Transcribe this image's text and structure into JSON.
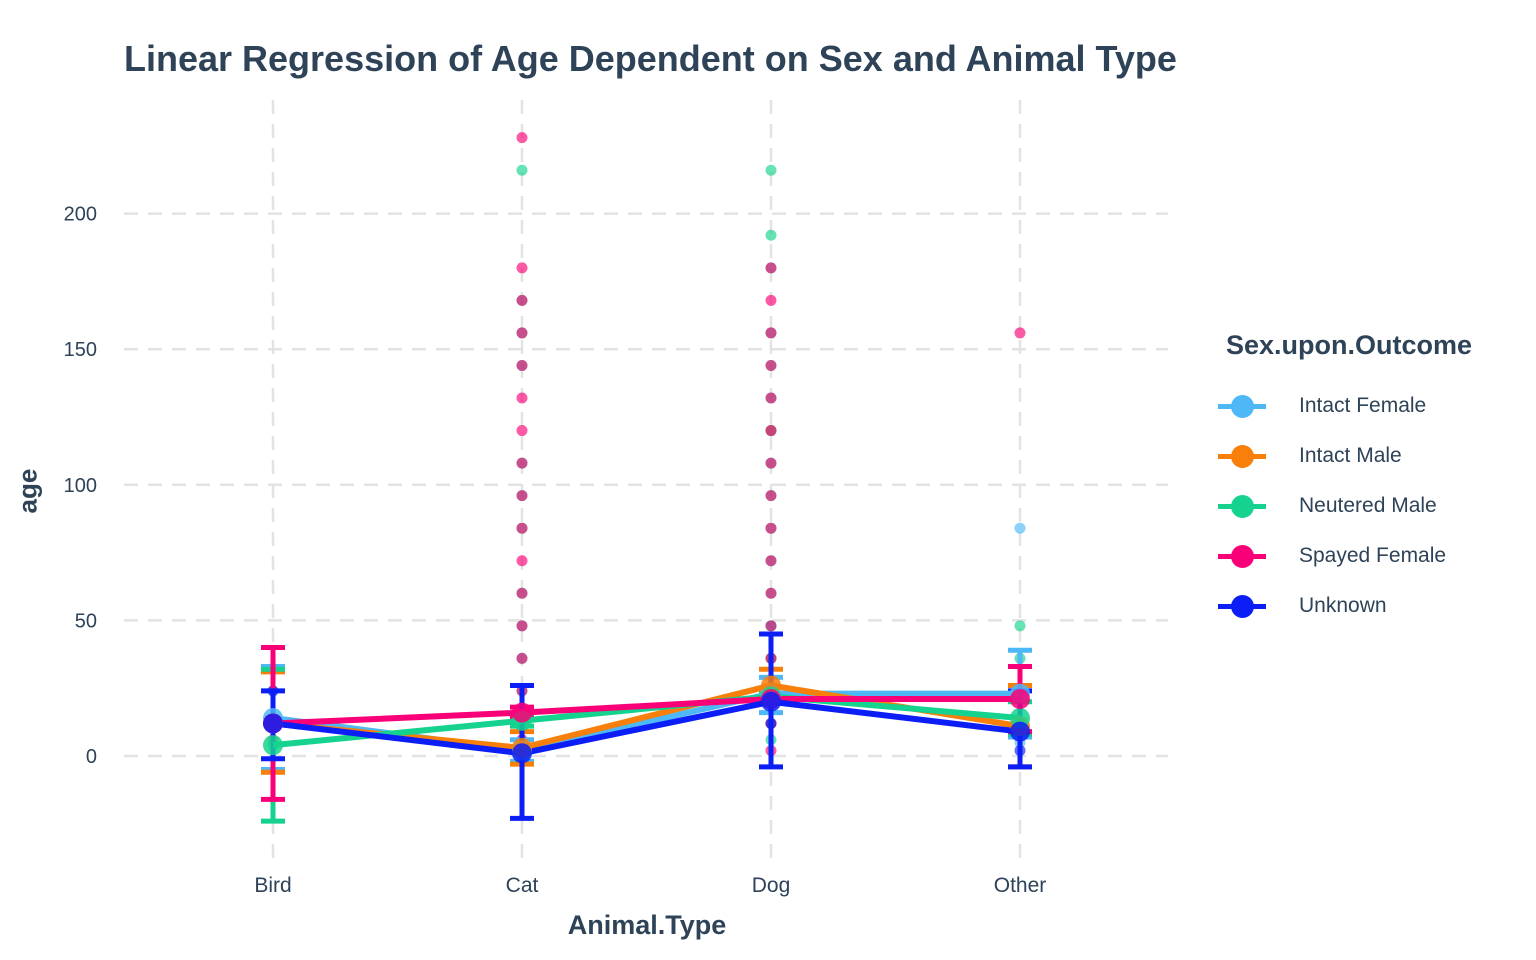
{
  "chart_data": {
    "type": "scatter",
    "title": "Linear Regression of Age Dependent on Sex and Animal Type",
    "xlabel": "Animal.Type",
    "ylabel": "age",
    "categories": [
      "Bird",
      "Cat",
      "Dog",
      "Other"
    ],
    "yticks": [
      0,
      50,
      100,
      150,
      200
    ],
    "ylim": [
      -40,
      240
    ],
    "grid": true,
    "legend": {
      "title": "Sex.upon.Outcome",
      "placement": "right"
    },
    "series": [
      {
        "name": "Intact Female",
        "color": "#4db8f5",
        "means": [
          14,
          2,
          23,
          23
        ],
        "lower": [
          -5,
          -2,
          16,
          7
        ],
        "upper": [
          33,
          6,
          29,
          39
        ],
        "points": [
          [
            0,
            12
          ],
          [
            0,
            24
          ],
          [
            1,
            2
          ],
          [
            1,
            6
          ],
          [
            1,
            12
          ],
          [
            2,
            24
          ],
          [
            2,
            36
          ],
          [
            2,
            48
          ],
          [
            3,
            84
          ],
          [
            3,
            5
          ],
          [
            3,
            12
          ],
          [
            3,
            24
          ]
        ]
      },
      {
        "name": "Intact Male",
        "color": "#f77f0a",
        "means": [
          12,
          3,
          26,
          11
        ],
        "lower": [
          -6,
          -3,
          20,
          -4
        ],
        "upper": [
          31,
          9,
          32,
          26
        ],
        "points": [
          [
            0,
            6
          ],
          [
            0,
            12
          ],
          [
            1,
            2
          ],
          [
            1,
            3
          ],
          [
            1,
            5
          ],
          [
            1,
            10
          ],
          [
            2,
            12
          ],
          [
            2,
            24
          ],
          [
            2,
            36
          ],
          [
            2,
            120
          ],
          [
            3,
            10
          ],
          [
            3,
            24
          ]
        ]
      },
      {
        "name": "Neutered Male",
        "color": "#15d38e",
        "means": [
          4,
          13,
          22,
          14
        ],
        "lower": [
          -24,
          11,
          21,
          8
        ],
        "upper": [
          32,
          15,
          23,
          20
        ],
        "points": [
          [
            0,
            4
          ],
          [
            1,
            12
          ],
          [
            1,
            24
          ],
          [
            1,
            36
          ],
          [
            1,
            48
          ],
          [
            1,
            60
          ],
          [
            1,
            84
          ],
          [
            1,
            96
          ],
          [
            1,
            108
          ],
          [
            1,
            144
          ],
          [
            1,
            156
          ],
          [
            1,
            168
          ],
          [
            1,
            216
          ],
          [
            2,
            6
          ],
          [
            2,
            12
          ],
          [
            2,
            24
          ],
          [
            2,
            36
          ],
          [
            2,
            48
          ],
          [
            2,
            60
          ],
          [
            2,
            72
          ],
          [
            2,
            84
          ],
          [
            2,
            96
          ],
          [
            2,
            108
          ],
          [
            2,
            120
          ],
          [
            2,
            132
          ],
          [
            2,
            144
          ],
          [
            2,
            156
          ],
          [
            2,
            180
          ],
          [
            2,
            192
          ],
          [
            2,
            216
          ],
          [
            3,
            36
          ],
          [
            3,
            48
          ]
        ]
      },
      {
        "name": "Spayed Female",
        "color": "#fa0078",
        "means": [
          12,
          16,
          21,
          21
        ],
        "lower": [
          -16,
          14,
          20,
          9
        ],
        "upper": [
          40,
          18,
          22,
          33
        ],
        "points": [
          [
            0,
            12
          ],
          [
            1,
            2
          ],
          [
            1,
            6
          ],
          [
            1,
            12
          ],
          [
            1,
            24
          ],
          [
            1,
            36
          ],
          [
            1,
            48
          ],
          [
            1,
            60
          ],
          [
            1,
            72
          ],
          [
            1,
            84
          ],
          [
            1,
            96
          ],
          [
            1,
            108
          ],
          [
            1,
            120
          ],
          [
            1,
            132
          ],
          [
            1,
            144
          ],
          [
            1,
            156
          ],
          [
            1,
            168
          ],
          [
            1,
            180
          ],
          [
            1,
            228
          ],
          [
            2,
            2
          ],
          [
            2,
            12
          ],
          [
            2,
            24
          ],
          [
            2,
            36
          ],
          [
            2,
            48
          ],
          [
            2,
            60
          ],
          [
            2,
            72
          ],
          [
            2,
            84
          ],
          [
            2,
            96
          ],
          [
            2,
            108
          ],
          [
            2,
            120
          ],
          [
            2,
            132
          ],
          [
            2,
            144
          ],
          [
            2,
            156
          ],
          [
            2,
            168
          ],
          [
            2,
            180
          ],
          [
            3,
            24
          ],
          [
            3,
            156
          ]
        ]
      },
      {
        "name": "Unknown",
        "color": "#0a1ef5",
        "means": [
          12,
          1,
          20,
          9
        ],
        "lower": [
          -1,
          -23,
          -4,
          -4
        ],
        "upper": [
          24,
          26,
          45,
          24
        ],
        "points": [
          [
            0,
            12
          ],
          [
            0,
            24
          ],
          [
            1,
            1
          ],
          [
            2,
            12
          ],
          [
            2,
            24
          ],
          [
            3,
            2
          ],
          [
            3,
            12
          ],
          [
            3,
            24
          ]
        ]
      }
    ]
  }
}
